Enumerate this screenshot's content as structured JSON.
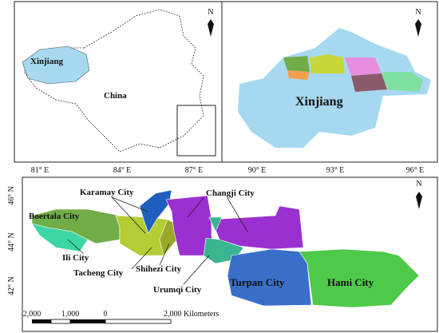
{
  "overview": {
    "labels": [
      "Xinjiang",
      "China"
    ],
    "north": "N"
  },
  "region": {
    "label": "Xinjiang",
    "north": "N"
  },
  "longitude_ticks": [
    "81° E",
    "84° E",
    "87° E",
    "90° E",
    "93° E",
    "96° E"
  ],
  "detail": {
    "cities": [
      "Karamay City",
      "Changji City",
      "Boertala City",
      "Ili City",
      "Tacheng City",
      "Shihezi City",
      "Urumqi City",
      "Turpan City",
      "Hami City"
    ],
    "latitude_ticks": [
      "46° N",
      "44° N",
      "42° N"
    ],
    "north": "N",
    "scale_bar": [
      "2,000",
      "1,000",
      "0",
      "2,000 Kilometers"
    ]
  }
}
